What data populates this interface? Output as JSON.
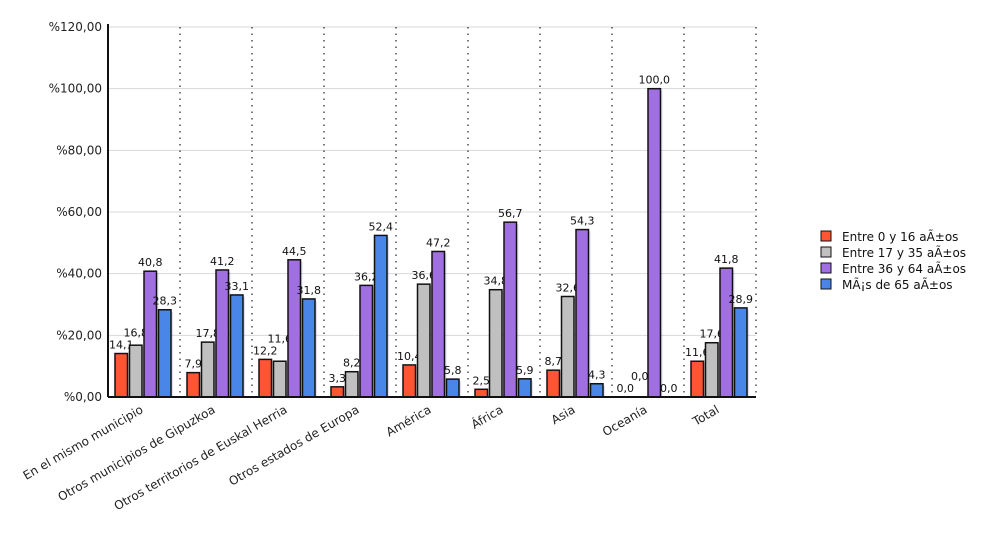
{
  "chart_data": {
    "type": "bar",
    "title": "",
    "xlabel": "",
    "ylabel": "",
    "ylim": [
      0,
      120
    ],
    "yticks": [
      "%0,00",
      "%20,00",
      "%40,00",
      "%60,00",
      "%80,00",
      "%100,00",
      "%120,00"
    ],
    "ytick_values": [
      0,
      20,
      40,
      60,
      80,
      100,
      120
    ],
    "grid": true,
    "legend_position": "right",
    "categories": [
      "En el mismo municipio",
      "Otros municipios de Gipuzkoa",
      "Otros territorios de Euskal Herria",
      "Otros estados de Europa",
      "América",
      "África",
      "Asia",
      "Oceanía",
      "Total"
    ],
    "series": [
      {
        "name": "Entre 0 y 16 aÃ±os",
        "color": "#ff5533",
        "values": [
          14.1,
          7.9,
          12.2,
          3.3,
          10.4,
          2.5,
          8.7,
          0.0,
          11.6
        ],
        "labels": [
          "14,1",
          "7,9",
          "12,2",
          "3,3",
          "10,4",
          "2,5",
          "8,7",
          "0,0",
          "11,6"
        ]
      },
      {
        "name": "Entre 17 y 35 aÃ±os",
        "color": "#c0c0c0",
        "values": [
          16.8,
          17.8,
          11.6,
          8.2,
          36.6,
          34.8,
          32.6,
          0.0,
          17.6
        ],
        "labels": [
          "16,8",
          "17,8",
          "11,6",
          "8,2",
          "36,6",
          "34,8",
          "32,6",
          "0,0",
          "17,6"
        ]
      },
      {
        "name": "Entre 36 y 64 aÃ±os",
        "color": "#a070e0",
        "values": [
          40.8,
          41.2,
          44.5,
          36.2,
          47.2,
          56.7,
          54.3,
          100.0,
          41.8
        ],
        "labels": [
          "40,8",
          "41,2",
          "44,5",
          "36,2",
          "47,2",
          "56,7",
          "54,3",
          "100,0",
          "41,8"
        ]
      },
      {
        "name": "MÃ¡s de 65 aÃ±os",
        "color": "#4a86e8",
        "values": [
          28.3,
          33.1,
          31.8,
          52.4,
          5.8,
          5.9,
          4.3,
          0.0,
          28.9
        ],
        "labels": [
          "28,3",
          "33,1",
          "31,8",
          "52,4",
          "5,8",
          "5,9",
          "4,3",
          "0,0",
          "28,9"
        ]
      }
    ]
  }
}
